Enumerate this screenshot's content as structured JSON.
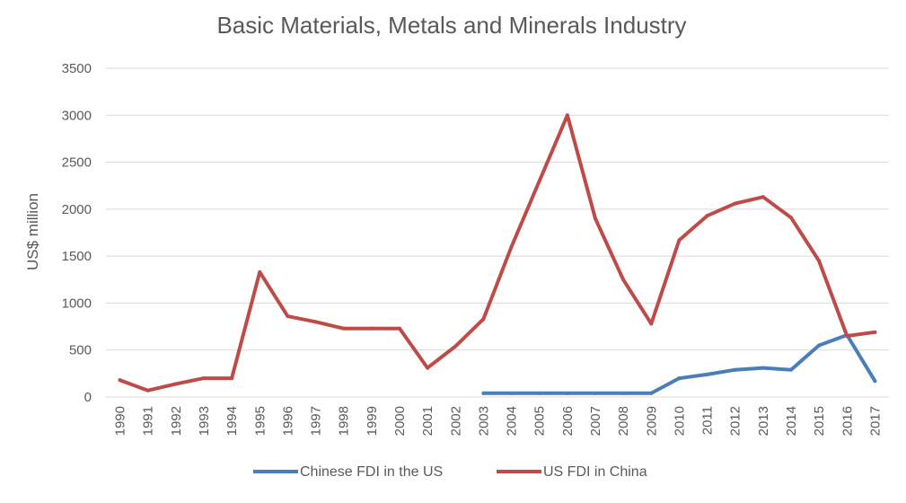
{
  "chart_data": {
    "type": "line",
    "title": "Basic Materials, Metals and Minerals Industry",
    "xlabel": "",
    "ylabel": "US$ million",
    "ylim": [
      0,
      3500
    ],
    "yticks": [
      0,
      500,
      1000,
      1500,
      2000,
      2500,
      3000,
      3500
    ],
    "grid": true,
    "legend_position": "bottom",
    "categories": [
      "1990",
      "1991",
      "1992",
      "1993",
      "1994",
      "1995",
      "1996",
      "1997",
      "1998",
      "1999",
      "2000",
      "2001",
      "2002",
      "2003",
      "2004",
      "2005",
      "2006",
      "2007",
      "2008",
      "2009",
      "2010",
      "2011",
      "2012",
      "2013",
      "2014",
      "2015",
      "2016",
      "2017"
    ],
    "series": [
      {
        "name": "Chinese FDI in the US",
        "color": "#4a7ebb",
        "values": [
          null,
          null,
          null,
          null,
          null,
          null,
          null,
          null,
          null,
          null,
          null,
          null,
          null,
          40,
          40,
          40,
          40,
          40,
          40,
          40,
          200,
          240,
          290,
          310,
          290,
          550,
          660,
          170
        ]
      },
      {
        "name": "US FDI in China",
        "color": "#be4b48",
        "values": [
          180,
          70,
          140,
          200,
          200,
          1330,
          860,
          800,
          730,
          730,
          730,
          310,
          540,
          830,
          1600,
          2300,
          3000,
          1900,
          1250,
          780,
          1670,
          1930,
          2060,
          2130,
          1910,
          1450,
          650,
          690
        ]
      }
    ]
  }
}
